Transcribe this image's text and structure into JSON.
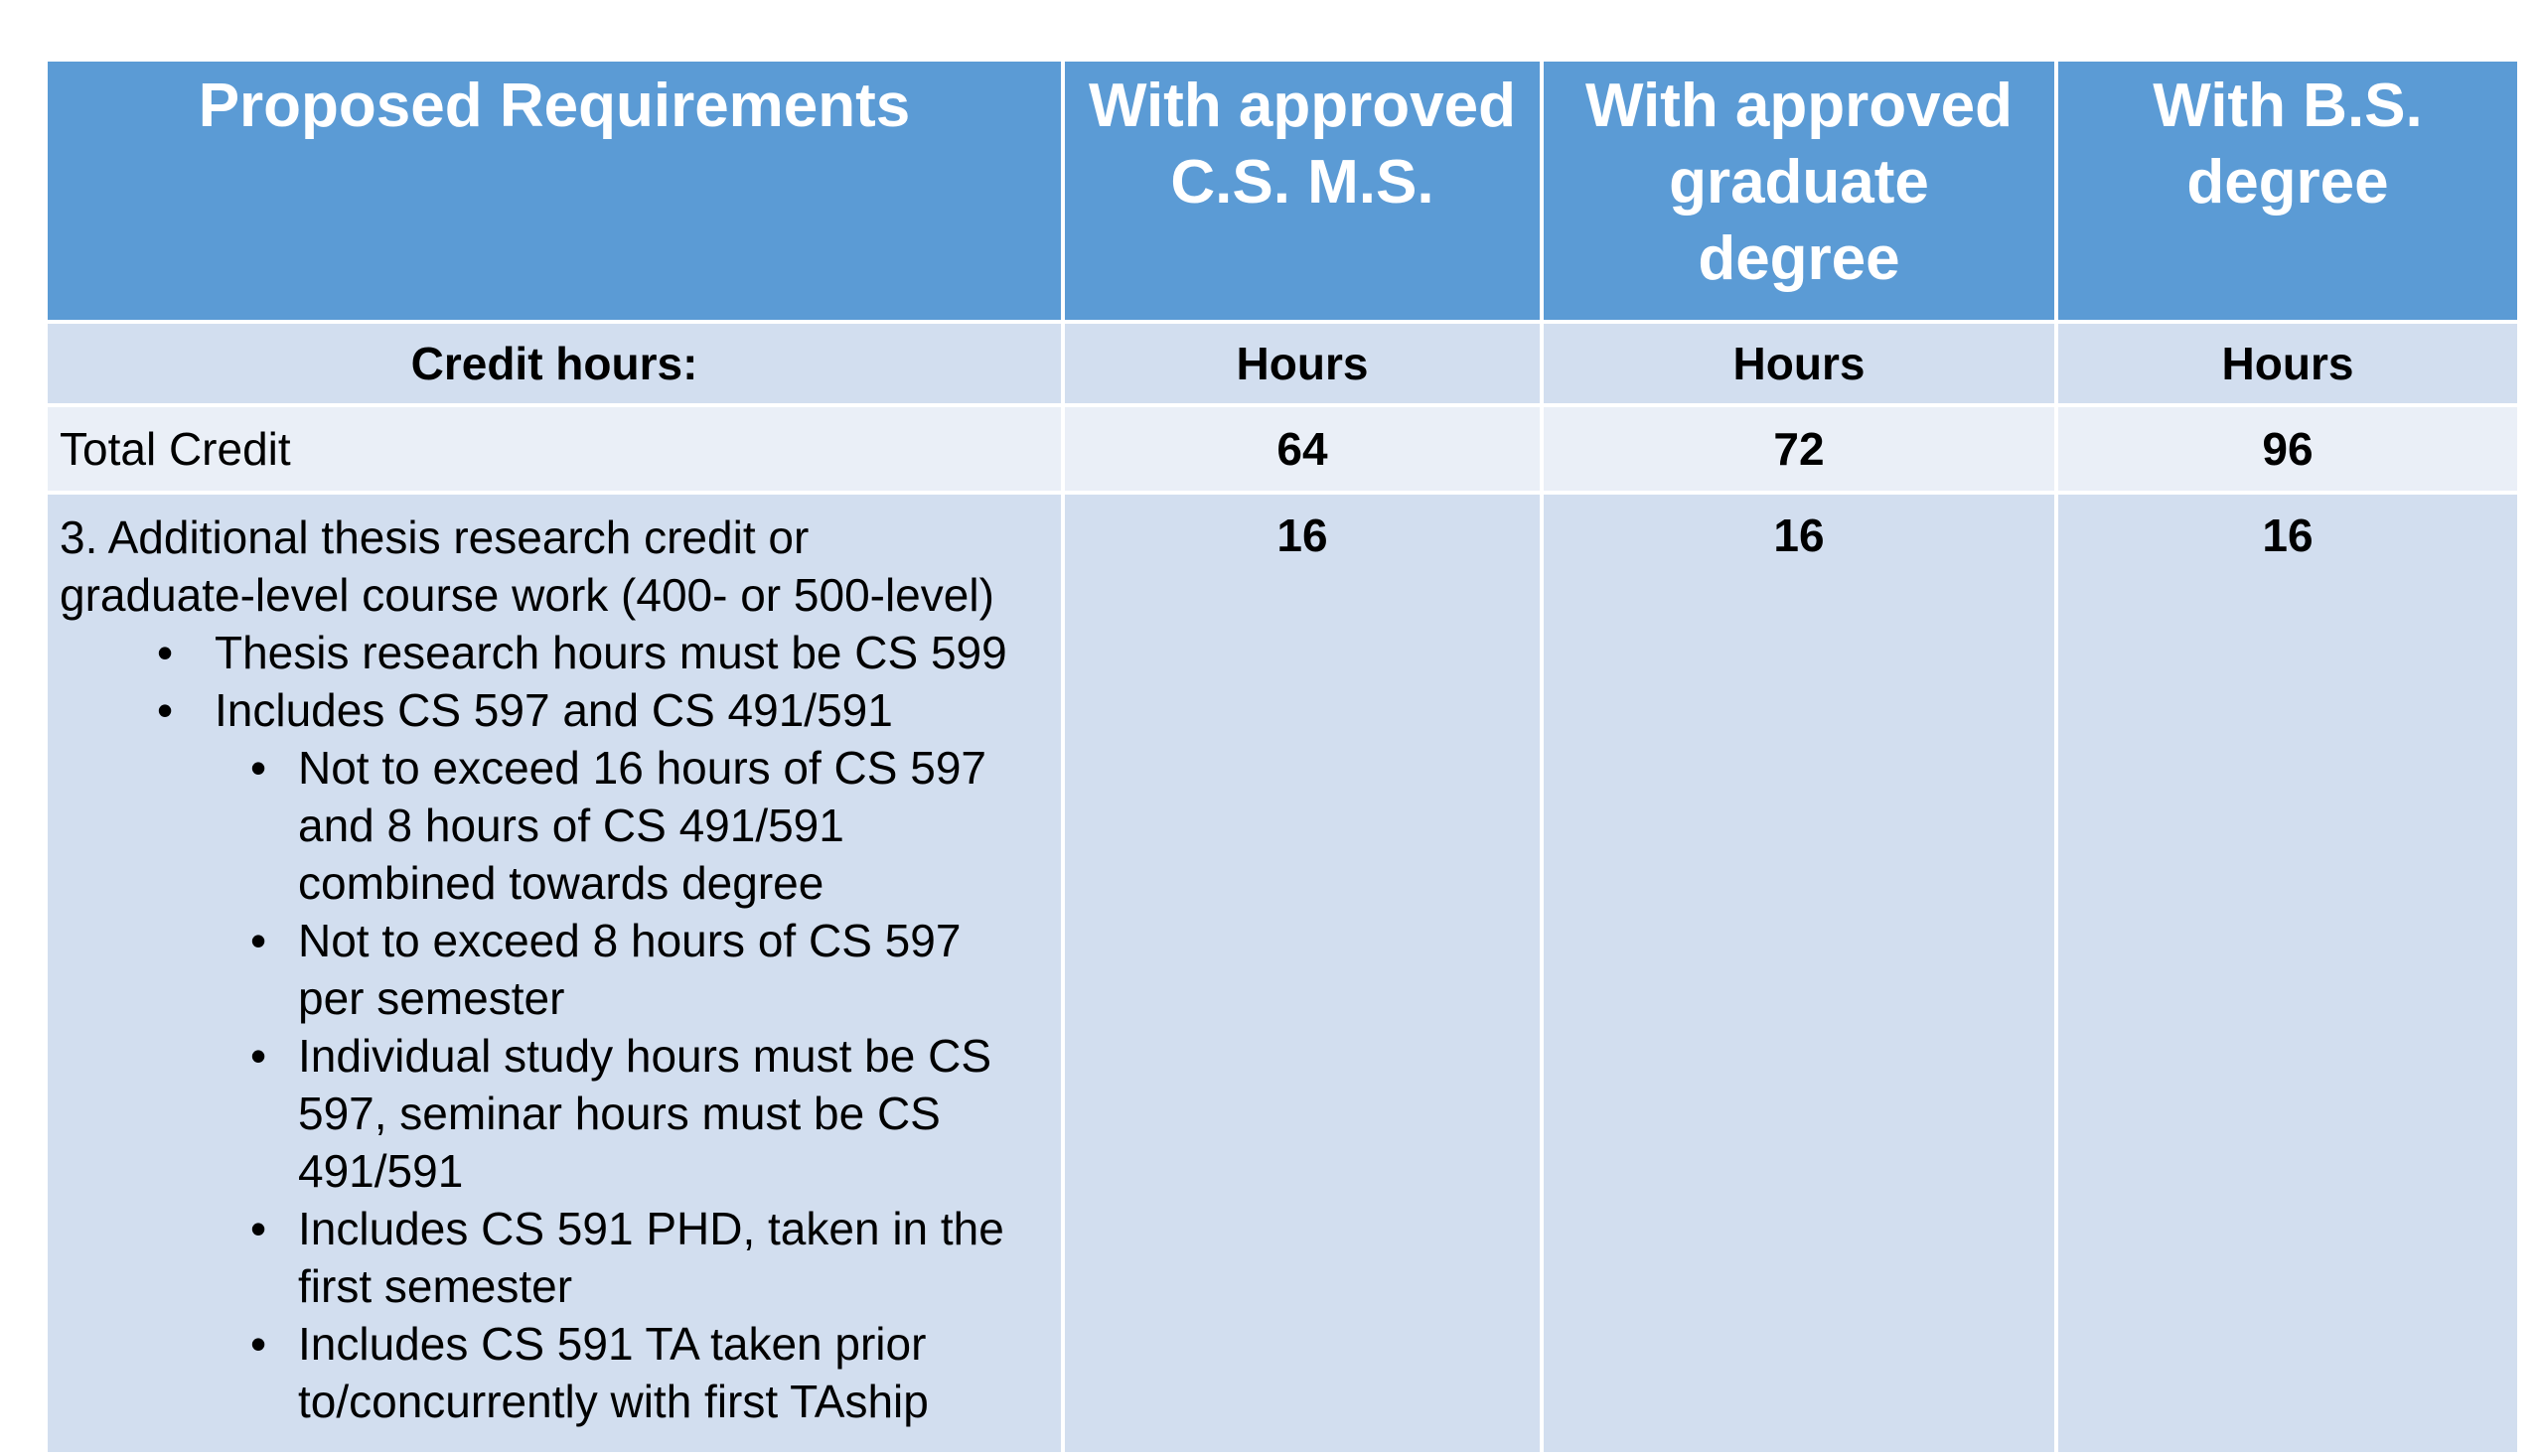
{
  "table": {
    "header": {
      "col1": "Proposed Requirements",
      "col2_line1": "With approved",
      "col2_line2": "C.S. M.S.",
      "col3_line1": "With approved",
      "col3_line2": "graduate",
      "col3_line3": "degree",
      "col4_line1": "With B.S.",
      "col4_line2": "degree"
    },
    "subheader": {
      "col1": "Credit hours:",
      "col2": "Hours",
      "col3": "Hours",
      "col4": "Hours"
    },
    "total_row": {
      "label": "Total Credit",
      "values": [
        "64",
        "72",
        "96"
      ]
    },
    "requirement_row": {
      "title_line1": "3. Additional thesis research credit or",
      "title_line2": "graduate-level course work (400- or 500-level)",
      "bullets": [
        "Thesis research hours must be CS 599",
        "Includes CS 597 and CS 491/591"
      ],
      "sub_bullets": [
        "Not to exceed 16 hours of CS 597 and 8 hours of CS 491/591 combined towards degree",
        "Not to exceed 8 hours of CS 597 per semester",
        "Individual study hours must be CS 597, seminar hours must be CS 491/591",
        "Includes CS 591 PHD, taken in the first semester",
        "Includes CS 591 TA taken prior to/concurrently with first TAship"
      ],
      "values": [
        "16",
        "16",
        "16"
      ]
    },
    "colors": {
      "header_bg": "#5b9bd5",
      "band_bg": "#d2deef",
      "light_bg": "#eaeff7"
    }
  }
}
